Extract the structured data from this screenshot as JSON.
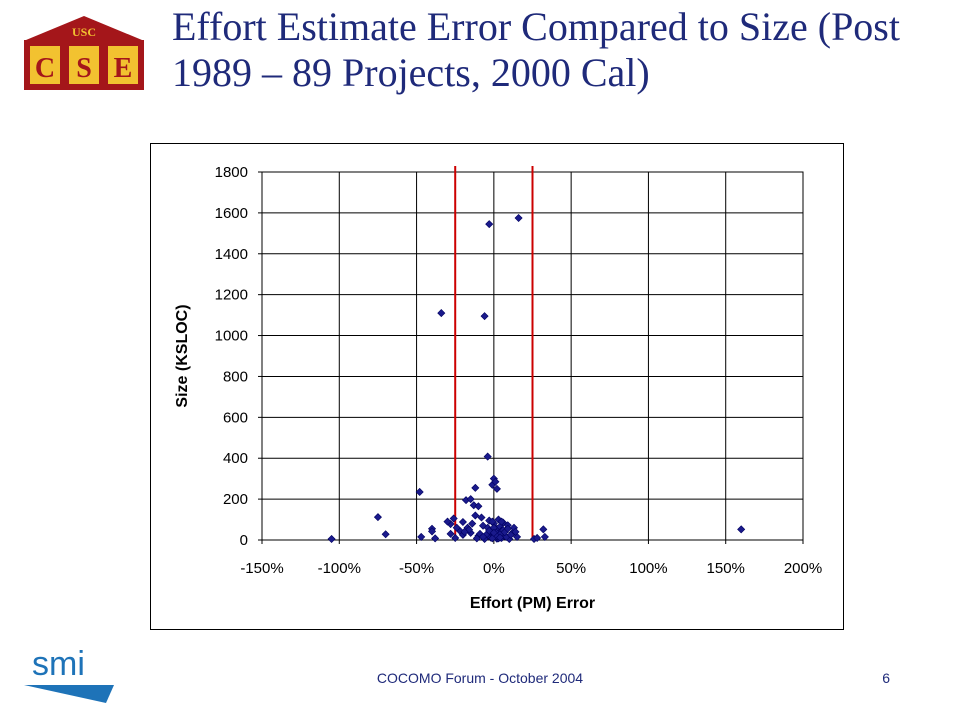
{
  "slide": {
    "title": "Effort Estimate Error Compared to Size (Post 1989 – 89 Projects, 2000 Cal)",
    "footer": "COCOMO Forum - October 2004",
    "page_number": "6",
    "logo_top_text": "USC",
    "logo_letters": [
      "C",
      "S",
      "E"
    ],
    "bottom_logo_text": "smi"
  },
  "colors": {
    "title": "#1f2a7a",
    "points": "#1a1a8c",
    "reference_lines": "#cc0000",
    "gridlines": "#000000",
    "logo_red": "#a4161a",
    "logo_gold": "#f2c230",
    "smi_blue": "#1e73b8"
  },
  "chart_data": {
    "type": "scatter",
    "xlabel": "Effort (PM) Error",
    "ylabel": "Size (KSLOC)",
    "xlim": [
      -150,
      200
    ],
    "ylim": [
      0,
      1800
    ],
    "x_ticks": [
      "-150%",
      "-100%",
      "-50%",
      "0%",
      "50%",
      "100%",
      "150%",
      "200%"
    ],
    "y_ticks": [
      "0",
      "200",
      "400",
      "600",
      "800",
      "1000",
      "1200",
      "1400",
      "1600",
      "1800"
    ],
    "grid": true,
    "reference_lines_x": [
      -25,
      25
    ],
    "marker": "diamond",
    "points": [
      {
        "x": -105,
        "y": 5
      },
      {
        "x": -75,
        "y": 112
      },
      {
        "x": -70,
        "y": 28
      },
      {
        "x": -48,
        "y": 235
      },
      {
        "x": -47,
        "y": 15
      },
      {
        "x": -40,
        "y": 55
      },
      {
        "x": -40,
        "y": 42
      },
      {
        "x": -38,
        "y": 8
      },
      {
        "x": -34,
        "y": 1110
      },
      {
        "x": -28,
        "y": 30
      },
      {
        "x": -28,
        "y": 78
      },
      {
        "x": -26,
        "y": 105
      },
      {
        "x": -25,
        "y": 10
      },
      {
        "x": -22,
        "y": 45
      },
      {
        "x": -20,
        "y": 88
      },
      {
        "x": -18,
        "y": 195
      },
      {
        "x": -17,
        "y": 60
      },
      {
        "x": -15,
        "y": 200
      },
      {
        "x": -15,
        "y": 35
      },
      {
        "x": -13,
        "y": 170
      },
      {
        "x": -12,
        "y": 255
      },
      {
        "x": -12,
        "y": 120
      },
      {
        "x": -10,
        "y": 165
      },
      {
        "x": -10,
        "y": 20
      },
      {
        "x": -8,
        "y": 110
      },
      {
        "x": -7,
        "y": 70
      },
      {
        "x": -6,
        "y": 1095
      },
      {
        "x": -5,
        "y": 25
      },
      {
        "x": -4,
        "y": 408
      },
      {
        "x": -3,
        "y": 1545
      },
      {
        "x": -3,
        "y": 95
      },
      {
        "x": -2,
        "y": 40
      },
      {
        "x": -1,
        "y": 270
      },
      {
        "x": 0,
        "y": 300
      },
      {
        "x": 0,
        "y": 80
      },
      {
        "x": 1,
        "y": 285
      },
      {
        "x": 1,
        "y": 15
      },
      {
        "x": 2,
        "y": 55
      },
      {
        "x": 2,
        "y": 250
      },
      {
        "x": 3,
        "y": 100
      },
      {
        "x": 3,
        "y": 30
      },
      {
        "x": 4,
        "y": 65
      },
      {
        "x": 5,
        "y": 10
      },
      {
        "x": 5,
        "y": 45
      },
      {
        "x": 6,
        "y": 85
      },
      {
        "x": 7,
        "y": 20
      },
      {
        "x": 8,
        "y": 50
      },
      {
        "x": 9,
        "y": 72
      },
      {
        "x": 10,
        "y": 5
      },
      {
        "x": 12,
        "y": 35
      },
      {
        "x": 13,
        "y": 60
      },
      {
        "x": 15,
        "y": 15
      },
      {
        "x": 16,
        "y": 1575
      },
      {
        "x": -6,
        "y": 5
      },
      {
        "x": -9,
        "y": 30
      },
      {
        "x": -4,
        "y": 60
      },
      {
        "x": -2,
        "y": 12
      },
      {
        "x": 1,
        "y": 40
      },
      {
        "x": 2,
        "y": 6
      },
      {
        "x": 4,
        "y": 28
      },
      {
        "x": 6,
        "y": 48
      },
      {
        "x": -1,
        "y": 90
      },
      {
        "x": 0,
        "y": 20
      },
      {
        "x": 3,
        "y": 8
      },
      {
        "x": 8,
        "y": 15
      },
      {
        "x": -16,
        "y": 50
      },
      {
        "x": -20,
        "y": 25
      },
      {
        "x": -11,
        "y": 8
      },
      {
        "x": 11,
        "y": 25
      },
      {
        "x": 26,
        "y": 5
      },
      {
        "x": 28,
        "y": 10
      },
      {
        "x": 32,
        "y": 52
      },
      {
        "x": 33,
        "y": 15
      },
      {
        "x": 160,
        "y": 52
      },
      {
        "x": -3,
        "y": 45
      },
      {
        "x": 5,
        "y": 90
      },
      {
        "x": -7,
        "y": 15
      },
      {
        "x": 0,
        "y": 60
      },
      {
        "x": 7,
        "y": 38
      },
      {
        "x": -14,
        "y": 80
      },
      {
        "x": 2,
        "y": 18
      },
      {
        "x": -1,
        "y": 8
      },
      {
        "x": 4,
        "y": 12
      },
      {
        "x": 9,
        "y": 55
      },
      {
        "x": -19,
        "y": 40
      },
      {
        "x": -24,
        "y": 60
      },
      {
        "x": 14,
        "y": 40
      },
      {
        "x": -30,
        "y": 90
      },
      {
        "x": 0,
        "y": 35
      }
    ]
  }
}
